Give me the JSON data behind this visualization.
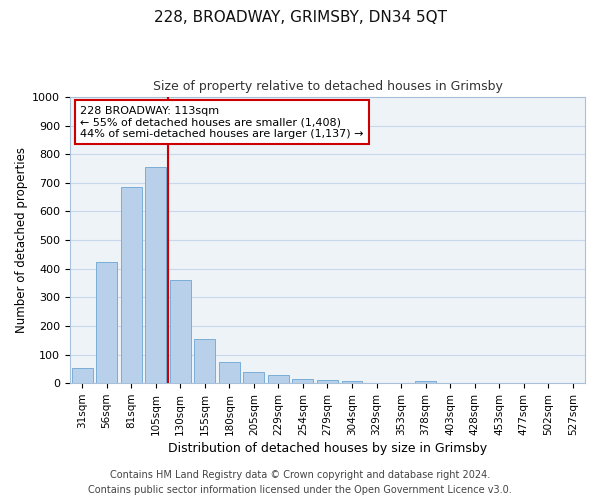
{
  "title": "228, BROADWAY, GRIMSBY, DN34 5QT",
  "subtitle": "Size of property relative to detached houses in Grimsby",
  "xlabel": "Distribution of detached houses by size in Grimsby",
  "ylabel": "Number of detached properties",
  "bar_labels": [
    "31sqm",
    "56sqm",
    "81sqm",
    "105sqm",
    "130sqm",
    "155sqm",
    "180sqm",
    "205sqm",
    "229sqm",
    "254sqm",
    "279sqm",
    "304sqm",
    "329sqm",
    "353sqm",
    "378sqm",
    "403sqm",
    "428sqm",
    "453sqm",
    "477sqm",
    "502sqm",
    "527sqm"
  ],
  "bar_values": [
    52,
    425,
    685,
    757,
    362,
    153,
    75,
    40,
    28,
    14,
    10,
    6,
    1,
    0,
    8,
    0,
    0,
    0,
    0,
    0,
    0
  ],
  "bar_color": "#b8d0ea",
  "bar_edge_color": "#7aaed8",
  "vline_color": "#cc0000",
  "ylim": [
    0,
    1000
  ],
  "yticks": [
    0,
    100,
    200,
    300,
    400,
    500,
    600,
    700,
    800,
    900,
    1000
  ],
  "grid_color": "#c8d8ec",
  "bg_color": "#eef3f8",
  "fig_bg_color": "#ffffff",
  "annotation_line1": "228 BROADWAY: 113sqm",
  "annotation_line2": "← 55% of detached houses are smaller (1,408)",
  "annotation_line3": "44% of semi-detached houses are larger (1,137) →",
  "annotation_box_facecolor": "#ffffff",
  "annotation_box_edgecolor": "#cc0000",
  "footer_line1": "Contains HM Land Registry data © Crown copyright and database right 2024.",
  "footer_line2": "Contains public sector information licensed under the Open Government Licence v3.0.",
  "title_fontsize": 11,
  "subtitle_fontsize": 9,
  "ylabel_fontsize": 8.5,
  "xlabel_fontsize": 9,
  "tick_fontsize": 8,
  "xtick_fontsize": 7.5,
  "footer_fontsize": 7,
  "annot_fontsize": 8
}
